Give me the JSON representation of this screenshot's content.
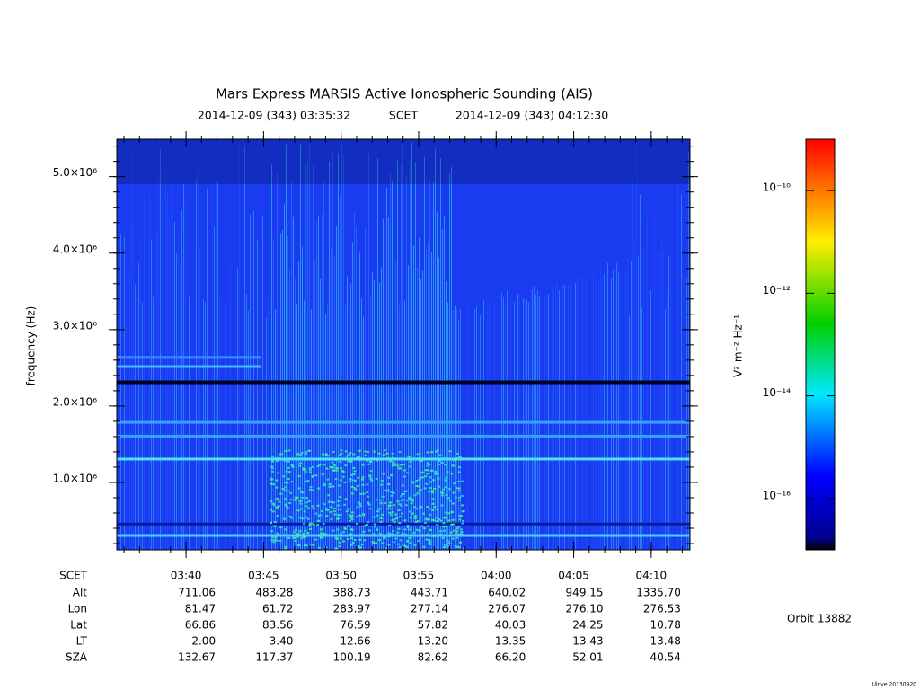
{
  "chart_data": {
    "type": "spectrogram",
    "title": "Mars Express MARSIS Active Ionospheric Sounding (AIS)",
    "start_time": "2014-12-09 (343) 03:35:32",
    "time_system": "SCET",
    "end_time": "2014-12-09 (343) 04:12:30",
    "y_label": "frequency (Hz)",
    "ylim": [
      118000,
      5490000
    ],
    "yticks": [
      {
        "value": 1000000,
        "label": "1.0×10⁶"
      },
      {
        "value": 2000000,
        "label": "2.0×10⁶"
      },
      {
        "value": 3000000,
        "label": "3.0×10⁶"
      },
      {
        "value": 4000000,
        "label": "4.0×10⁶"
      },
      {
        "value": 5000000,
        "label": "5.0×10⁶"
      }
    ],
    "xticks": [
      "03:40",
      "03:45",
      "03:50",
      "03:55",
      "04:00",
      "04:05",
      "04:10"
    ],
    "colorbar": {
      "label": "V² m⁻² Hz⁻¹",
      "log_scale": true,
      "lim": [
        1e-17,
        1e-09
      ],
      "ticks": [
        {
          "value": 1e-10,
          "label": "10⁻¹⁰"
        },
        {
          "value": 1e-12,
          "label": "10⁻¹²"
        },
        {
          "value": 1e-14,
          "label": "10⁻¹⁴"
        },
        {
          "value": 1e-16,
          "label": "10⁻¹⁶"
        }
      ]
    },
    "ephemeris": {
      "time_label": "SCET",
      "rows": [
        {
          "label": "Alt",
          "values": [
            "711.06",
            "483.28",
            "388.73",
            "443.71",
            "640.02",
            "949.15",
            "1335.70"
          ]
        },
        {
          "label": "Lon",
          "values": [
            "81.47",
            "61.72",
            "283.97",
            "277.14",
            "276.07",
            "276.10",
            "276.53"
          ]
        },
        {
          "label": "Lat",
          "values": [
            "66.86",
            "83.56",
            "76.59",
            "57.82",
            "40.03",
            "24.25",
            "10.78"
          ]
        },
        {
          "label": "LT",
          "values": [
            "2.00",
            "3.40",
            "12.66",
            "13.20",
            "13.35",
            "13.43",
            "13.48"
          ]
        },
        {
          "label": "SZA",
          "values": [
            "132.67",
            "117.37",
            "100.19",
            "82.62",
            "66.20",
            "52.01",
            "40.54"
          ]
        }
      ]
    },
    "orbit": "Orbit 13882",
    "version": "Ulove 20130920"
  }
}
